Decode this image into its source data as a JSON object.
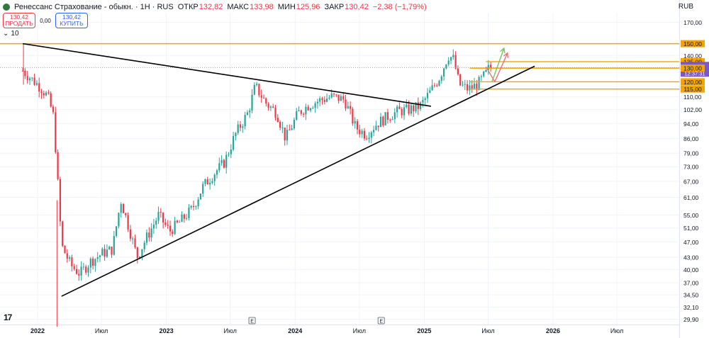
{
  "header": {
    "symbol": "Ренессанс Страхование - обыкн. · 1H · RUS",
    "open_label": "ОТКР",
    "open": "132,82",
    "high_label": "МАКС",
    "high": "133,98",
    "low_label": "МИН",
    "low": "125,96",
    "close_label": "ЗАКР",
    "close": "130,42",
    "change": "−2,38 (−1,79%)"
  },
  "trade": {
    "sell_price": "130,42",
    "sell_label": "ПРОДАТЬ",
    "spread": "0,00",
    "buy_price": "130,42",
    "buy_label": "КУПИТЬ"
  },
  "indicator": {
    "icon": "chevron-down-icon",
    "value": "10"
  },
  "currency": "RUB",
  "colors": {
    "up": "#26a69a",
    "down": "#f23645",
    "trendline": "#000000",
    "level": "#f5a300",
    "last_price": "#7e57c2",
    "grid": "#f0f3fa",
    "arrow_up": "#7cc35a",
    "arrow_alt": "#e9737d"
  },
  "chart_data": {
    "type": "candlestick",
    "scale": "log",
    "ylim": [
      28.5,
      182
    ],
    "y_ticks": [
      "170,00",
      "150,00",
      "140,00",
      "135,00",
      "130,42",
      "130,00",
      "120,00",
      "115,00",
      "110,00",
      "102,00",
      "94,00",
      "86,00",
      "79,00",
      "73,00",
      "67,00",
      "61,00",
      "55,00",
      "51,00",
      "47,00",
      "43,00",
      "40,00",
      "37,00",
      "34,50",
      "32,10",
      "29,90"
    ],
    "x_ticks": [
      "2022",
      "Июл",
      "2023",
      "Июл",
      "2024",
      "Июл",
      "2025",
      "Июл",
      "2026",
      "Июл"
    ],
    "event_markers": [
      {
        "date": "2023-09",
        "label": "E"
      },
      {
        "date": "2024-09",
        "label": "E"
      }
    ],
    "levels": [
      {
        "price": 150.0,
        "label": "150,00"
      },
      {
        "price": 135.0,
        "label": "135,00"
      },
      {
        "price": 130.0,
        "label": "130,00"
      },
      {
        "price": 120.0,
        "label": "120,00"
      },
      {
        "price": 115.0,
        "label": "115,00"
      }
    ],
    "last_price": {
      "price": 130.42,
      "label": "130,42",
      "countdown": "12:37:31"
    },
    "trendlines": [
      {
        "from": {
          "date": "2021-11-20",
          "price": 150
        },
        "to": {
          "date": "2025-01-20",
          "price": 104
        }
      },
      {
        "from": {
          "date": "2022-03-10",
          "price": 34.2
        },
        "to": {
          "date": "2025-11-10",
          "price": 131.5
        }
      }
    ],
    "forecast_arrows": [
      {
        "from": {
          "date": "2025-07-12",
          "price": 120
        },
        "to": {
          "date": "2025-08-15",
          "price": 146
        },
        "color": "up"
      },
      {
        "from": {
          "date": "2025-06-25",
          "price": 131
        },
        "to": {
          "date": "2025-07-20",
          "price": 120
        },
        "color": "alt"
      },
      {
        "from": {
          "date": "2025-07-20",
          "price": 120
        },
        "to": {
          "date": "2025-08-25",
          "price": 142
        },
        "color": "alt"
      }
    ],
    "closes": [
      {
        "date": "2021-11-20",
        "close": 128
      },
      {
        "date": "2021-12-15",
        "close": 122
      },
      {
        "date": "2022-01-10",
        "close": 116
      },
      {
        "date": "2022-01-30",
        "close": 110
      },
      {
        "date": "2022-02-15",
        "close": 98
      },
      {
        "date": "2022-02-25",
        "close": 72
      },
      {
        "date": "2022-03-10",
        "close": 46
      },
      {
        "date": "2022-04-05",
        "close": 41
      },
      {
        "date": "2022-05-01",
        "close": 39
      },
      {
        "date": "2022-06-01",
        "close": 42
      },
      {
        "date": "2022-07-05",
        "close": 44
      },
      {
        "date": "2022-08-01",
        "close": 45
      },
      {
        "date": "2022-08-25",
        "close": 60
      },
      {
        "date": "2022-09-20",
        "close": 50
      },
      {
        "date": "2022-10-10",
        "close": 43
      },
      {
        "date": "2022-11-05",
        "close": 48
      },
      {
        "date": "2022-12-10",
        "close": 55
      },
      {
        "date": "2023-01-10",
        "close": 50
      },
      {
        "date": "2023-02-10",
        "close": 53
      },
      {
        "date": "2023-03-15",
        "close": 57
      },
      {
        "date": "2023-04-15",
        "close": 65
      },
      {
        "date": "2023-05-15",
        "close": 70
      },
      {
        "date": "2023-06-15",
        "close": 75
      },
      {
        "date": "2023-07-15",
        "close": 88
      },
      {
        "date": "2023-08-20",
        "close": 100
      },
      {
        "date": "2023-09-10",
        "close": 117
      },
      {
        "date": "2023-10-10",
        "close": 106
      },
      {
        "date": "2023-11-10",
        "close": 100
      },
      {
        "date": "2023-12-05",
        "close": 86
      },
      {
        "date": "2024-01-10",
        "close": 100
      },
      {
        "date": "2024-02-10",
        "close": 105
      },
      {
        "date": "2024-03-15",
        "close": 108
      },
      {
        "date": "2024-04-15",
        "close": 110
      },
      {
        "date": "2024-05-20",
        "close": 108
      },
      {
        "date": "2024-06-20",
        "close": 92
      },
      {
        "date": "2024-07-20",
        "close": 88
      },
      {
        "date": "2024-08-20",
        "close": 94
      },
      {
        "date": "2024-09-20",
        "close": 98
      },
      {
        "date": "2024-10-20",
        "close": 101
      },
      {
        "date": "2024-11-20",
        "close": 102
      },
      {
        "date": "2024-12-20",
        "close": 104
      },
      {
        "date": "2025-01-15",
        "close": 112
      },
      {
        "date": "2025-02-15",
        "close": 124
      },
      {
        "date": "2025-03-10",
        "close": 140
      },
      {
        "date": "2025-03-25",
        "close": 137
      },
      {
        "date": "2025-04-10",
        "close": 118
      },
      {
        "date": "2025-05-05",
        "close": 115
      },
      {
        "date": "2025-06-01",
        "close": 118
      },
      {
        "date": "2025-06-25",
        "close": 126
      },
      {
        "date": "2025-07-05",
        "close": 131
      },
      {
        "date": "2025-07-12",
        "close": 130.42
      }
    ]
  }
}
